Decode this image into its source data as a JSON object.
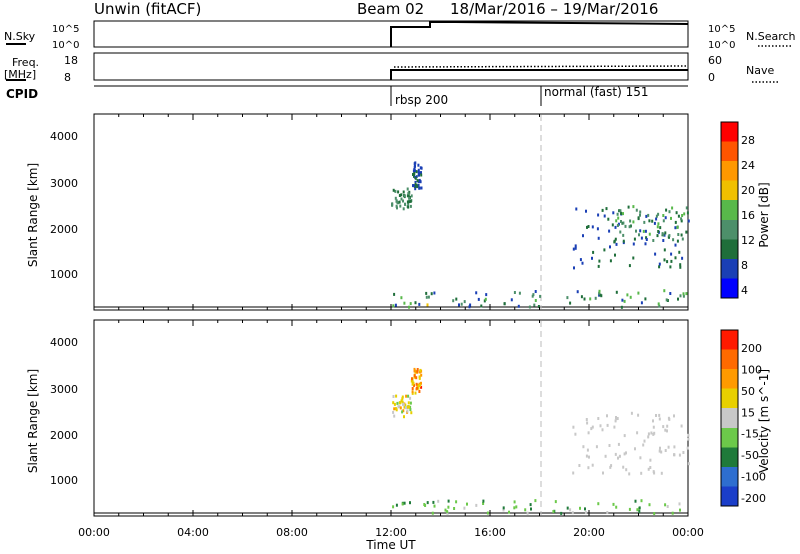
{
  "header": {
    "station": "Unwin (fitACF)",
    "beam": "Beam 02",
    "date_range": "18/Mar/2016 – 19/Mar/2016"
  },
  "top_panels": {
    "nsky_label": "N.Sky",
    "nsky_ticks": [
      "10^5",
      "10^0"
    ],
    "nsearch_label": "N.Search",
    "nsearch_ticks": [
      "10^5",
      "10^0"
    ],
    "freq_label": "Freq.",
    "freq_unit": "[MHz]",
    "freq_ticks": [
      "18",
      "8"
    ],
    "nave_label": "Nave",
    "nave_ticks": [
      "60",
      "0"
    ],
    "cpid_label": "CPID",
    "cpid_segments": [
      {
        "label": "rbsp 200",
        "start_hour": 12.0
      },
      {
        "label": "normal (fast) 151",
        "start_hour": 18.0
      }
    ]
  },
  "x_axis": {
    "label": "Time UT",
    "ticks": [
      "00:00",
      "04:00",
      "08:00",
      "12:00",
      "16:00",
      "20:00",
      "00:00"
    ]
  },
  "colors": {
    "power": [
      "#0000ff",
      "#1a3fb5",
      "#1f6e3a",
      "#4d8f6a",
      "#58b84a",
      "#f0c000",
      "#ff9800",
      "#ff5500",
      "#ff0000"
    ],
    "velocity": [
      "#1b3ec9",
      "#2e6ecf",
      "#1f7a3a",
      "#6cc94a",
      "#c8c8c8",
      "#e8d000",
      "#ff9a00",
      "#ff6a00",
      "#ff1a00"
    ]
  },
  "chart_data": [
    {
      "type": "scatter",
      "panel": "power",
      "ylabel": "Slant Range [km]",
      "yticks": [
        "4000",
        "3000",
        "2000",
        "1000"
      ],
      "ylim": [
        180,
        4500
      ],
      "xlim": [
        0,
        24
      ],
      "colorbar": {
        "label": "Power [dB]",
        "ticks": [
          "28",
          "24",
          "20",
          "16",
          "12",
          "8",
          "4"
        ],
        "range": [
          0,
          32
        ]
      },
      "regions": [
        {
          "x": [
            12.0,
            12.8
          ],
          "y": [
            2400,
            2900
          ],
          "value_range": [
            8,
            14
          ]
        },
        {
          "x": [
            12.8,
            13.2
          ],
          "y": [
            2900,
            3500
          ],
          "value_range": [
            4,
            8
          ]
        },
        {
          "x": [
            12.0,
            24.0
          ],
          "y": [
            200,
            600
          ],
          "value_range": [
            4,
            18
          ]
        },
        {
          "x": [
            19.3,
            24.0
          ],
          "y": [
            1100,
            2500
          ],
          "value_range": [
            4,
            10
          ]
        },
        {
          "x": [
            21.0,
            24.0
          ],
          "y": [
            1700,
            2500
          ],
          "value_range": [
            10,
            16
          ]
        }
      ]
    },
    {
      "type": "scatter",
      "panel": "velocity",
      "ylabel": "Slant Range [km]",
      "yticks": [
        "4000",
        "3000",
        "2000",
        "1000"
      ],
      "ylim": [
        180,
        4500
      ],
      "xlim": [
        0,
        24
      ],
      "colorbar": {
        "label": "Velocity [m s^-1]",
        "ticks": [
          "200",
          "100",
          "50",
          "15",
          "-15",
          "-50",
          "-100",
          "-200"
        ],
        "range": [
          -250,
          250
        ]
      },
      "regions": [
        {
          "x": [
            12.0,
            12.8
          ],
          "y": [
            2400,
            2900
          ],
          "value_range": [
            -50,
            100
          ]
        },
        {
          "x": [
            12.8,
            13.2
          ],
          "y": [
            2900,
            3500
          ],
          "value_range": [
            50,
            200
          ]
        },
        {
          "x": [
            12.0,
            24.0
          ],
          "y": [
            200,
            500
          ],
          "value_range": [
            -100,
            -15
          ]
        },
        {
          "x": [
            19.3,
            24.0
          ],
          "y": [
            1100,
            2500
          ],
          "value_range": [
            -15,
            15
          ]
        }
      ]
    }
  ]
}
